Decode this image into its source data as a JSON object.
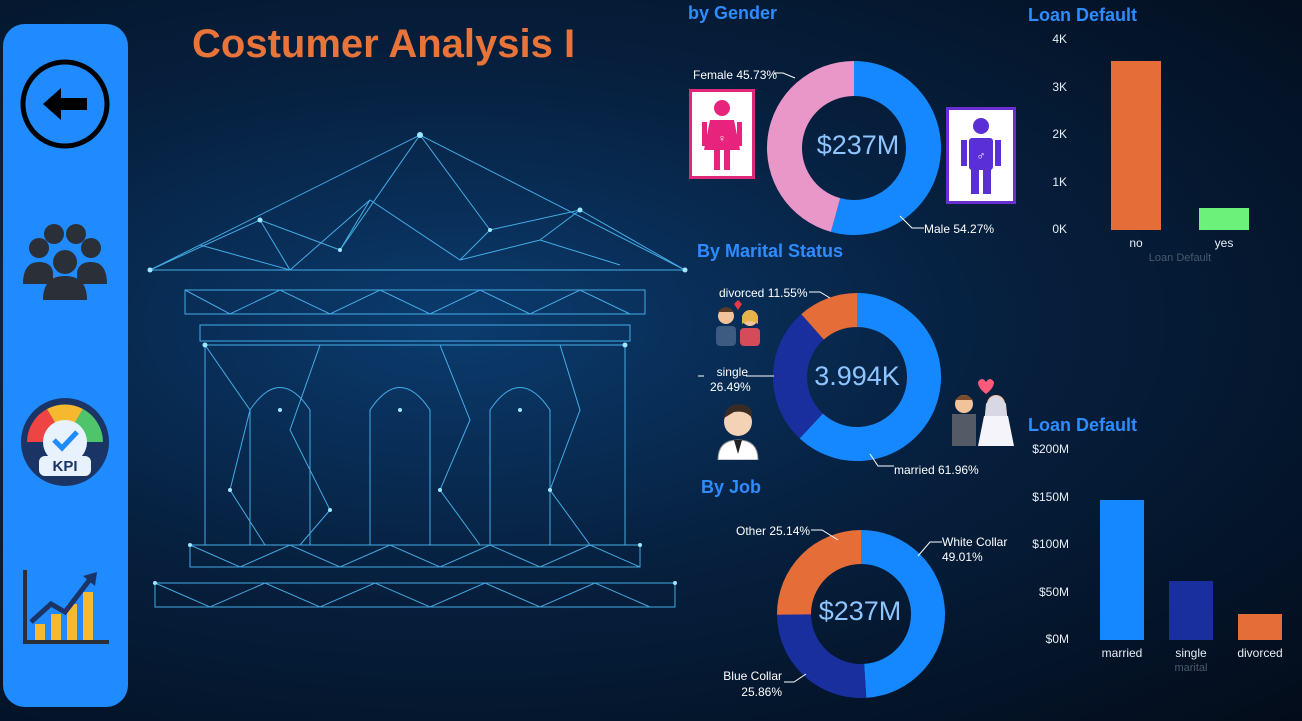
{
  "page": {
    "title": "Costumer Analysis I"
  },
  "sidebar": {
    "items": [
      {
        "name": "back",
        "icon": "back-arrow-icon"
      },
      {
        "name": "customers",
        "icon": "people-group-icon"
      },
      {
        "name": "kpi",
        "icon": "kpi-gauge-icon",
        "badge": "KPI"
      },
      {
        "name": "trend",
        "icon": "growth-chart-icon"
      }
    ]
  },
  "gender": {
    "title": "by Gender",
    "center": "$237M",
    "female_label": "Female 45.73%",
    "male_label": "Male 54.27%",
    "icons": {
      "female": "female-icon",
      "male": "male-icon"
    },
    "colors": {
      "female": "#e996c8",
      "male": "#1688ff"
    }
  },
  "marital": {
    "title": "By Marital Status",
    "center": "3.994K",
    "divorced_label": "divorced 11.55%",
    "single_label_1": "single",
    "single_label_2": "26.49%",
    "married_label": "married 61.96%",
    "icons": {
      "divorced": "divorced-couple-icon",
      "single": "single-man-icon",
      "married": "wedding-couple-icon"
    },
    "colors": {
      "married": "#1688ff",
      "single": "#1a2f9e",
      "divorced": "#e46d38"
    }
  },
  "job": {
    "title": "By Job",
    "center": "$237M",
    "other_label": "Other 25.14%",
    "white_label_1": "White Collar",
    "white_label_2": "49.01%",
    "blue_label_1": "Blue Collar",
    "blue_label_2": "25.86%",
    "colors": {
      "white": "#1688ff",
      "blue": "#1a2f9e",
      "other": "#e46d38"
    }
  },
  "chart_data": [
    {
      "type": "bar",
      "title": "Loan Default",
      "categories": [
        "no",
        "yes"
      ],
      "values": [
        3550,
        470
      ],
      "colors": [
        "#e46d38",
        "#6cf27a"
      ],
      "xlabel": "Loan Default",
      "ylabel": "",
      "yticks": [
        "0K",
        "1K",
        "2K",
        "3K",
        "4K"
      ],
      "ylim": [
        0,
        4000
      ]
    },
    {
      "type": "bar",
      "title": "Loan Default",
      "categories": [
        "married",
        "single",
        "divorced"
      ],
      "values": [
        147,
        62,
        27
      ],
      "colors": [
        "#1688ff",
        "#1a2f9e",
        "#e46d38"
      ],
      "xlabel": "marital",
      "ylabel": "",
      "yticks": [
        "$0M",
        "$50M",
        "$100M",
        "$150M",
        "$200M"
      ],
      "ylim": [
        0,
        200
      ]
    }
  ]
}
